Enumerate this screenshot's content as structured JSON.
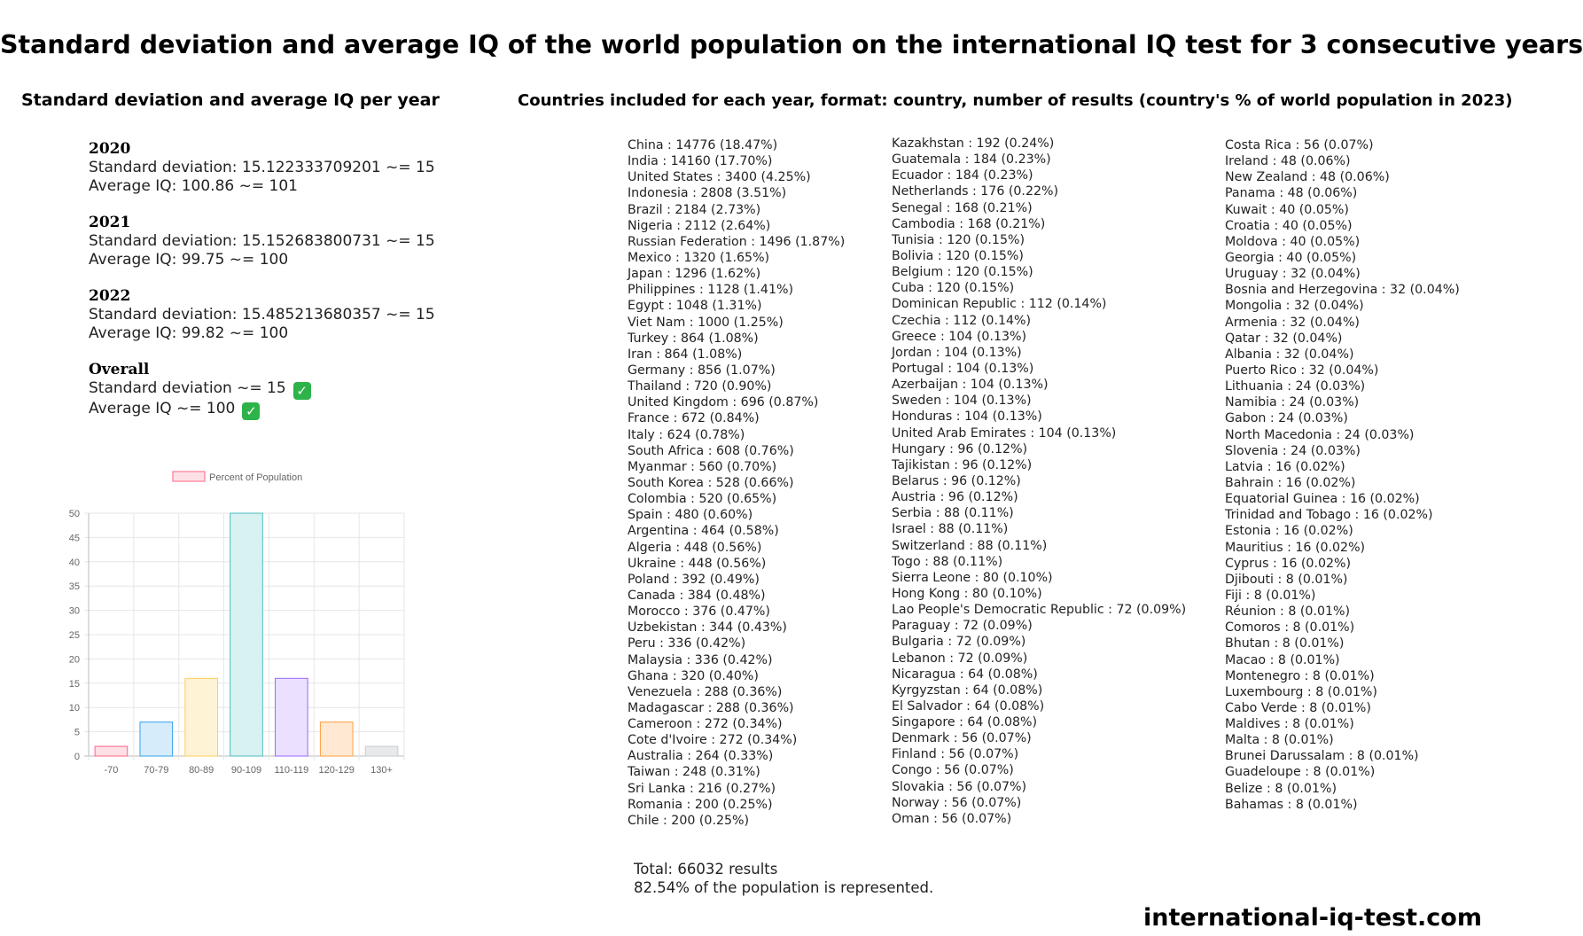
{
  "title": "Standard deviation and average IQ of the world population on the international IQ test for 3 consecutive years",
  "left_heading": "Standard deviation and average IQ per year",
  "right_heading": "Countries included for each year, format: country, number of results (country's % of world population in 2023)",
  "stats": [
    {
      "year": "2020",
      "sd": "Standard deviation: 15.122333709201  ~= 15",
      "avg": "Average IQ: 100.86 ~= 101"
    },
    {
      "year": "2021",
      "sd": "Standard deviation: 15.152683800731  ~= 15",
      "avg": "Average IQ: 99.75  ~= 100"
    },
    {
      "year": "2022",
      "sd": "Standard deviation: 15.485213680357  ~= 15",
      "avg": "Average IQ: 99.82  ~= 100"
    },
    {
      "year": "Overall",
      "sd": "Standard deviation ~= 15",
      "avg": "Average IQ ~= 100"
    }
  ],
  "check_icon": "check-mark-icon",
  "chart_data": {
    "type": "bar",
    "categories": [
      "-70",
      "70-79",
      "80-89",
      "90-109",
      "110-119",
      "120-129",
      "130+"
    ],
    "series": [
      {
        "name": "Percent of Population",
        "values": [
          2,
          7,
          16,
          50,
          16,
          7,
          2
        ]
      }
    ],
    "colors": {
      "fill": [
        "#fde0e6",
        "#d6ecfb",
        "#fff3d6",
        "#d8f1f1",
        "#ebe0ff",
        "#ffe9d3",
        "#e8e9eb"
      ],
      "stroke": [
        "#ff6384",
        "#36a2eb",
        "#ffcd56",
        "#4bc0c0",
        "#9966ff",
        "#ff9f40",
        "#c9cbcf"
      ]
    },
    "ylim": [
      0,
      50
    ],
    "yticks": [
      0,
      5,
      10,
      15,
      20,
      25,
      30,
      35,
      40,
      45,
      50
    ],
    "grid": true,
    "legend": "top-center"
  },
  "countries": {
    "col1": [
      "China : 14776 (18.47%)",
      "India : 14160 (17.70%)",
      "United States : 3400 (4.25%)",
      "Indonesia : 2808 (3.51%)",
      "Brazil : 2184 (2.73%)",
      "Nigeria : 2112 (2.64%)",
      "Russian Federation : 1496 (1.87%)",
      "Mexico : 1320 (1.65%)",
      "Japan : 1296 (1.62%)",
      "Philippines : 1128 (1.41%)",
      "Egypt : 1048 (1.31%)",
      "Viet Nam : 1000 (1.25%)",
      "Turkey : 864 (1.08%)",
      "Iran : 864 (1.08%)",
      "Germany : 856 (1.07%)",
      "Thailand : 720 (0.90%)",
      "United Kingdom : 696 (0.87%)",
      "France : 672 (0.84%)",
      "Italy : 624 (0.78%)",
      "South Africa : 608 (0.76%)",
      "Myanmar : 560 (0.70%)",
      "South Korea : 528 (0.66%)",
      "Colombia : 520 (0.65%)",
      "Spain : 480 (0.60%)",
      "Argentina : 464 (0.58%)",
      "Algeria : 448 (0.56%)",
      "Ukraine : 448 (0.56%)",
      "Poland : 392 (0.49%)",
      "Canada : 384 (0.48%)",
      "Morocco : 376 (0.47%)",
      "Uzbekistan : 344 (0.43%)",
      "Peru : 336 (0.42%)",
      "Malaysia : 336 (0.42%)",
      "Ghana : 320 (0.40%)",
      "Venezuela : 288 (0.36%)",
      "Madagascar : 288 (0.36%)",
      "Cameroon : 272 (0.34%)",
      "Cote d'Ivoire : 272 (0.34%)",
      "Australia : 264 (0.33%)",
      "Taiwan : 248 (0.31%)",
      "Sri Lanka : 216 (0.27%)",
      "Romania : 200 (0.25%)",
      "Chile : 200 (0.25%)"
    ],
    "col2": [
      "Kazakhstan : 192 (0.24%)",
      "Guatemala : 184 (0.23%)",
      "Ecuador : 184 (0.23%)",
      "Netherlands : 176 (0.22%)",
      "Senegal : 168 (0.21%)",
      "Cambodia : 168 (0.21%)",
      "Tunisia : 120 (0.15%)",
      "Bolivia : 120 (0.15%)",
      "Belgium : 120 (0.15%)",
      "Cuba : 120 (0.15%)",
      "Dominican Republic : 112 (0.14%)",
      "Czechia : 112 (0.14%)",
      "Greece : 104 (0.13%)",
      "Jordan : 104 (0.13%)",
      "Portugal : 104 (0.13%)",
      "Azerbaijan : 104 (0.13%)",
      "Sweden : 104 (0.13%)",
      "Honduras : 104 (0.13%)",
      "United Arab Emirates : 104 (0.13%)",
      "Hungary : 96 (0.12%)",
      "Tajikistan : 96 (0.12%)",
      "Belarus : 96 (0.12%)",
      "Austria : 96 (0.12%)",
      "Serbia : 88 (0.11%)",
      "Israel : 88 (0.11%)",
      "Switzerland : 88 (0.11%)",
      "Togo : 88 (0.11%)",
      "Sierra Leone : 80 (0.10%)",
      "Hong Kong : 80 (0.10%)",
      "Lao People's Democratic Republic : 72 (0.09%)",
      "Paraguay : 72 (0.09%)",
      "Bulgaria : 72 (0.09%)",
      "Lebanon : 72 (0.09%)",
      "Nicaragua : 64 (0.08%)",
      "Kyrgyzstan : 64 (0.08%)",
      "El Salvador : 64 (0.08%)",
      "Singapore : 64 (0.08%)",
      "Denmark : 56 (0.07%)",
      "Finland : 56 (0.07%)",
      "Congo : 56 (0.07%)",
      "Slovakia : 56 (0.07%)",
      "Norway : 56 (0.07%)",
      "Oman : 56 (0.07%)"
    ],
    "col3": [
      "Costa Rica : 56 (0.07%)",
      "Ireland : 48 (0.06%)",
      "New Zealand : 48 (0.06%)",
      "Panama : 48 (0.06%)",
      "Kuwait : 40 (0.05%)",
      "Croatia : 40 (0.05%)",
      "Moldova : 40 (0.05%)",
      "Georgia : 40 (0.05%)",
      "Uruguay : 32 (0.04%)",
      "Bosnia and Herzegovina : 32 (0.04%)",
      "Mongolia : 32 (0.04%)",
      "Armenia : 32 (0.04%)",
      "Qatar : 32 (0.04%)",
      "Albania : 32 (0.04%)",
      "Puerto Rico : 32 (0.04%)",
      "Lithuania : 24 (0.03%)",
      "Namibia : 24 (0.03%)",
      "Gabon : 24 (0.03%)",
      "North Macedonia : 24 (0.03%)",
      "Slovenia : 24 (0.03%)",
      "Latvia : 16 (0.02%)",
      "Bahrain : 16 (0.02%)",
      "Equatorial Guinea : 16 (0.02%)",
      "Trinidad and Tobago : 16 (0.02%)",
      "Estonia : 16 (0.02%)",
      "Mauritius : 16 (0.02%)",
      "Cyprus : 16 (0.02%)",
      "Djibouti : 8 (0.01%)",
      "Fiji : 8 (0.01%)",
      "Réunion : 8 (0.01%)",
      "Comoros : 8 (0.01%)",
      "Bhutan : 8 (0.01%)",
      "Macao : 8 (0.01%)",
      "Montenegro : 8 (0.01%)",
      "Luxembourg : 8 (0.01%)",
      "Cabo Verde : 8 (0.01%)",
      "Maldives : 8 (0.01%)",
      "Malta : 8 (0.01%)",
      "Brunei Darussalam : 8 (0.01%)",
      "Guadeloupe : 8 (0.01%)",
      "Belize : 8 (0.01%)",
      "Bahamas : 8 (0.01%)"
    ]
  },
  "totals": {
    "results": "Total: 66032 results",
    "represented": "82.54% of the population is represented."
  },
  "site": "international-iq-test.com"
}
